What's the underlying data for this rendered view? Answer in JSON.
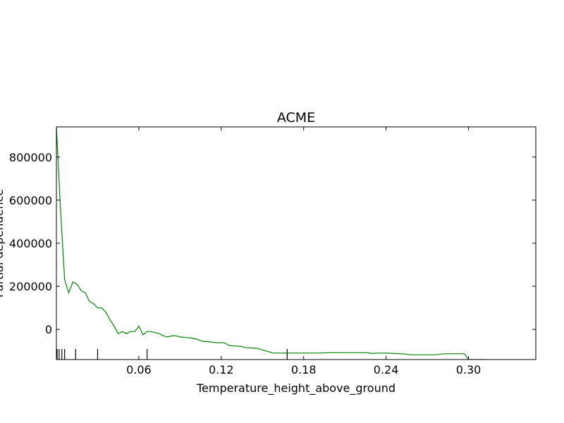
{
  "chart_data": {
    "type": "line",
    "title": "ACME",
    "xlabel": "Temperature_height_above_ground",
    "ylabel": "Partial dependence",
    "xlim": [
      0.0,
      0.349
    ],
    "ylim": [
      -140000,
      940000
    ],
    "x_ticks": [
      0.06,
      0.12,
      0.18,
      0.24,
      0.3
    ],
    "x_tick_labels": [
      "0.06",
      "0.12",
      "0.18",
      "0.24",
      "0.30"
    ],
    "y_ticks": [
      0,
      200000,
      400000,
      600000,
      800000
    ],
    "y_tick_labels": [
      "0",
      "200000",
      "400000",
      "600000",
      "800000"
    ],
    "grid": false,
    "series": [
      {
        "color": "#008000",
        "x": [
          0.0,
          0.003,
          0.006,
          0.009,
          0.012,
          0.015,
          0.018,
          0.021,
          0.024,
          0.027,
          0.03,
          0.033,
          0.036,
          0.039,
          0.042,
          0.045,
          0.048,
          0.051,
          0.054,
          0.057,
          0.06,
          0.063,
          0.066,
          0.069,
          0.072,
          0.075,
          0.078,
          0.081,
          0.084,
          0.087,
          0.09,
          0.094,
          0.098,
          0.102,
          0.106,
          0.11,
          0.114,
          0.118,
          0.122,
          0.126,
          0.13,
          0.134,
          0.138,
          0.142,
          0.146,
          0.15,
          0.154,
          0.158,
          0.162,
          0.166,
          0.17,
          0.18,
          0.19,
          0.2,
          0.21,
          0.22,
          0.226,
          0.23,
          0.234,
          0.24,
          0.246,
          0.252,
          0.258,
          0.264,
          0.27,
          0.276,
          0.282,
          0.288,
          0.294,
          0.297,
          0.3,
          0.306,
          0.312
        ],
        "y": [
          940000,
          560000,
          230000,
          170000,
          220000,
          210000,
          180000,
          170000,
          130000,
          120000,
          100000,
          100000,
          80000,
          45000,
          15000,
          -20000,
          -10000,
          -20000,
          -10000,
          -10000,
          15000,
          -25000,
          -10000,
          -10000,
          -15000,
          -20000,
          -30000,
          -35000,
          -30000,
          -30000,
          -35000,
          -38000,
          -40000,
          -45000,
          -55000,
          -57000,
          -60000,
          -62000,
          -62000,
          -75000,
          -77000,
          -78000,
          -85000,
          -86000,
          -88000,
          -95000,
          -103000,
          -110000,
          -110000,
          -110000,
          -110000,
          -110000,
          -110000,
          -108000,
          -108000,
          -108000,
          -108000,
          -112000,
          -110000,
          -110000,
          -112000,
          -113000,
          -118000,
          -118000,
          -118000,
          -118000,
          -113000,
          -113000,
          -113000,
          -113000,
          -140000,
          -140000,
          -140000
        ]
      }
    ],
    "rug_x": [
      0.0005,
      0.002,
      0.004,
      0.006,
      0.014,
      0.03,
      0.066,
      0.168
    ]
  }
}
